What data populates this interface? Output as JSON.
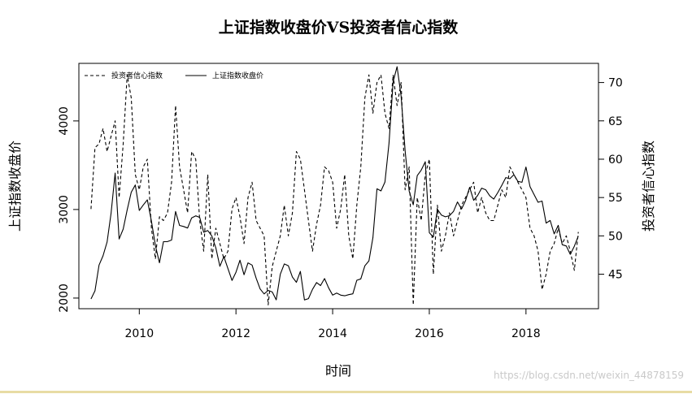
{
  "chart_data": {
    "type": "line",
    "title": "上证指数收盘价VS投资者信心指数",
    "xlabel": "时间",
    "ylabel_left": "上证指数收盘价",
    "ylabel_right": "投资者信心指数",
    "xlim": [
      2008.75,
      2019.5
    ],
    "ylim_left": [
      1880,
      4650
    ],
    "ylim_right": [
      40.5,
      72.5
    ],
    "x_ticks": [
      2010,
      2012,
      2014,
      2016,
      2018
    ],
    "y_ticks_left": [
      2000,
      3000,
      4000
    ],
    "y_ticks_right": [
      45,
      50,
      55,
      60,
      65,
      70
    ],
    "grid": false,
    "legend_position": "top-left",
    "series": [
      {
        "name": "投资者信心指数",
        "axis": "right",
        "style": "dashed",
        "x": [
          2009.0,
          2009.083,
          2009.167,
          2009.25,
          2009.333,
          2009.417,
          2009.5,
          2009.583,
          2009.667,
          2009.75,
          2009.833,
          2009.917,
          2010.0,
          2010.083,
          2010.167,
          2010.25,
          2010.333,
          2010.417,
          2010.5,
          2010.583,
          2010.667,
          2010.75,
          2010.833,
          2010.917,
          2011.0,
          2011.083,
          2011.167,
          2011.25,
          2011.333,
          2011.417,
          2011.5,
          2011.583,
          2011.667,
          2011.75,
          2011.833,
          2011.917,
          2012.0,
          2012.083,
          2012.167,
          2012.25,
          2012.333,
          2012.417,
          2012.5,
          2012.583,
          2012.667,
          2012.75,
          2012.833,
          2012.917,
          2013.0,
          2013.083,
          2013.167,
          2013.25,
          2013.333,
          2013.417,
          2013.5,
          2013.583,
          2013.667,
          2013.75,
          2013.833,
          2013.917,
          2014.0,
          2014.083,
          2014.167,
          2014.25,
          2014.333,
          2014.417,
          2014.5,
          2014.583,
          2014.667,
          2014.75,
          2014.833,
          2014.917,
          2015.0,
          2015.083,
          2015.167,
          2015.25,
          2015.333,
          2015.417,
          2015.5,
          2015.583,
          2015.667,
          2015.75,
          2015.833,
          2015.917,
          2016.0,
          2016.083,
          2016.167,
          2016.25,
          2016.333,
          2016.417,
          2016.5,
          2016.583,
          2016.667,
          2016.75,
          2016.833,
          2016.917,
          2017.0,
          2017.083,
          2017.167,
          2017.25,
          2017.333,
          2017.417,
          2017.5,
          2017.583,
          2017.667,
          2017.75,
          2017.833,
          2017.917,
          2018.0,
          2018.083,
          2018.167,
          2018.25,
          2018.333,
          2018.417,
          2018.5,
          2018.583,
          2018.667,
          2018.75,
          2018.833,
          2018.917,
          2019.0,
          2019.083
        ],
        "values": [
          53.5,
          61.5,
          62,
          64,
          61,
          63,
          65,
          55,
          62,
          71,
          68,
          58,
          56,
          59,
          60,
          51,
          47,
          52.5,
          52,
          53,
          57,
          67,
          59,
          56,
          53,
          61,
          60,
          52,
          48,
          58,
          47,
          51,
          49,
          47,
          48,
          53.5,
          55,
          52.5,
          49,
          55,
          57,
          52,
          51,
          50,
          41,
          46,
          48,
          50,
          54,
          50,
          53,
          61,
          60,
          56,
          52,
          48,
          51.5,
          54,
          59,
          58.5,
          57,
          51,
          53.5,
          58,
          50,
          47,
          54,
          59,
          68,
          71,
          66,
          70,
          71,
          66,
          64,
          71,
          67,
          70,
          56,
          59,
          41,
          55,
          52,
          58,
          60,
          45,
          54,
          48,
          50,
          53,
          50,
          52,
          54,
          55,
          56,
          57,
          53,
          55,
          53,
          52,
          52,
          54,
          56,
          55,
          59,
          58,
          57,
          56,
          55,
          51,
          50,
          48,
          43,
          45,
          48,
          49,
          51,
          49,
          50,
          48,
          45.5,
          50.5
        ]
      },
      {
        "name": "上证指数收盘价",
        "axis": "left",
        "style": "solid",
        "x": [
          2009.0,
          2009.083,
          2009.167,
          2009.25,
          2009.333,
          2009.417,
          2009.5,
          2009.583,
          2009.667,
          2009.75,
          2009.833,
          2009.917,
          2010.0,
          2010.083,
          2010.167,
          2010.25,
          2010.333,
          2010.417,
          2010.5,
          2010.583,
          2010.667,
          2010.75,
          2010.833,
          2010.917,
          2011.0,
          2011.083,
          2011.167,
          2011.25,
          2011.333,
          2011.417,
          2011.5,
          2011.583,
          2011.667,
          2011.75,
          2011.833,
          2011.917,
          2012.0,
          2012.083,
          2012.167,
          2012.25,
          2012.333,
          2012.417,
          2012.5,
          2012.583,
          2012.667,
          2012.75,
          2012.833,
          2012.917,
          2013.0,
          2013.083,
          2013.167,
          2013.25,
          2013.333,
          2013.417,
          2013.5,
          2013.583,
          2013.667,
          2013.75,
          2013.833,
          2013.917,
          2014.0,
          2014.083,
          2014.167,
          2014.25,
          2014.333,
          2014.417,
          2014.5,
          2014.583,
          2014.667,
          2014.75,
          2014.833,
          2014.917,
          2015.0,
          2015.083,
          2015.167,
          2015.25,
          2015.333,
          2015.417,
          2015.5,
          2015.583,
          2015.667,
          2015.75,
          2015.833,
          2015.917,
          2016.0,
          2016.083,
          2016.167,
          2016.25,
          2016.333,
          2016.417,
          2016.5,
          2016.583,
          2016.667,
          2016.75,
          2016.833,
          2016.917,
          2017.0,
          2017.083,
          2017.167,
          2017.25,
          2017.333,
          2017.417,
          2017.5,
          2017.583,
          2017.667,
          2017.75,
          2017.833,
          2017.917,
          2018.0,
          2018.083,
          2018.167,
          2018.25,
          2018.333,
          2018.417,
          2018.5,
          2018.583,
          2018.667,
          2018.75,
          2018.833,
          2018.917,
          2019.0,
          2019.083
        ],
        "values": [
          1990,
          2082,
          2373,
          2477,
          2633,
          2959,
          3412,
          2667,
          2779,
          2995,
          3195,
          3277,
          2989,
          3051,
          3109,
          2870,
          2592,
          2398,
          2637,
          2638,
          2655,
          2978,
          2820,
          2808,
          2791,
          2905,
          2928,
          2911,
          2743,
          2762,
          2702,
          2568,
          2359,
          2468,
          2333,
          2199,
          2292,
          2428,
          2263,
          2397,
          2373,
          2225,
          2103,
          2047,
          2086,
          2069,
          1980,
          2269,
          2385,
          2365,
          2237,
          2178,
          2301,
          1979,
          1994,
          2098,
          2175,
          2141,
          2220,
          2116,
          2033,
          2056,
          2033,
          2026,
          2039,
          2048,
          2201,
          2217,
          2364,
          2420,
          2683,
          3234,
          3210,
          3310,
          3748,
          4441,
          4612,
          4277,
          3664,
          3206,
          3053,
          3382,
          3445,
          3539,
          2738,
          2688,
          3004,
          2938,
          2917,
          2930,
          2979,
          3085,
          3005,
          3100,
          3250,
          3104,
          3159,
          3241,
          3223,
          3154,
          3117,
          3192,
          3273,
          3360,
          3348,
          3393,
          3317,
          3307,
          3480,
          3259,
          3169,
          3082,
          3095,
          2847,
          2876,
          2725,
          2821,
          2603,
          2588,
          2494,
          2585,
          2700
        ]
      }
    ]
  },
  "watermark": "https://blog.csdn.net/weixin_44878159"
}
